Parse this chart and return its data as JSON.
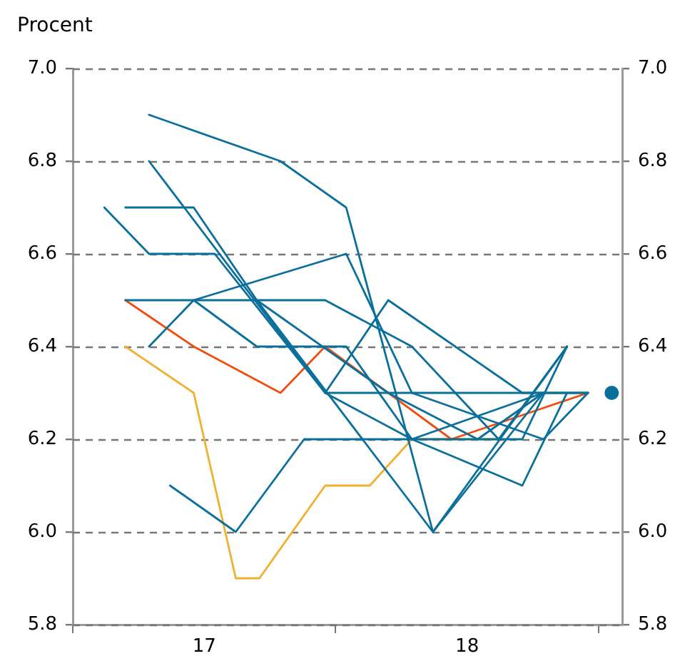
{
  "chart_data": {
    "type": "line",
    "ylabel": "Procent",
    "xlim": [
      16.5,
      18.59
    ],
    "xticks": [
      {
        "value": 16.5,
        "label": null
      },
      17,
      {
        "value": 17.5,
        "label": null
      },
      18,
      {
        "value": 18.5,
        "label": null
      }
    ],
    "ylim": [
      5.8,
      7.0
    ],
    "yticks": [
      {
        "value": 5.8,
        "label": "5.8"
      },
      {
        "value": 6.0,
        "label": "6.0"
      },
      {
        "value": 6.2,
        "label": "6.2"
      },
      {
        "value": 6.4,
        "label": "6.4"
      },
      {
        "value": 6.6,
        "label": "6.6"
      },
      {
        "value": 6.8,
        "label": "6.8"
      },
      {
        "value": 7.0,
        "label": "7.0"
      }
    ],
    "y2lim": [
      5.8,
      7.0
    ],
    "y2ticks": [
      {
        "value": 5.8,
        "label": "5.8"
      },
      {
        "value": 6.0,
        "label": "6.0"
      },
      {
        "value": 6.2,
        "label": "6.2"
      },
      {
        "value": 6.4,
        "label": "6.4"
      },
      {
        "value": 6.6,
        "label": "6.6"
      },
      {
        "value": 6.8,
        "label": "6.8"
      },
      {
        "value": 7.0,
        "label": "7.0"
      }
    ],
    "grid": "y",
    "legend": false,
    "marker": "none",
    "line_style": "solid",
    "series": [
      {
        "color": "#0a6f9a",
        "x": [
          16.79,
          17.29,
          17.54,
          17.87,
          18.38
        ],
        "values": [
          6.9,
          6.8,
          6.7,
          6.0,
          6.4
        ]
      },
      {
        "color": "#0a6f9a",
        "x": [
          16.79,
          17.46,
          17.79,
          18.29
        ],
        "values": [
          6.8,
          6.3,
          6.2,
          6.3
        ]
      },
      {
        "color": "#0a6f9a",
        "x": [
          16.62,
          16.79,
          17.04,
          17.46,
          18.46
        ],
        "values": [
          6.7,
          6.6,
          6.6,
          6.3,
          6.3
        ]
      },
      {
        "color": "#0a6f9a",
        "x": [
          16.7,
          16.96,
          17.2,
          17.7,
          18.04,
          18.29
        ],
        "values": [
          6.7,
          6.7,
          6.5,
          6.3,
          6.2,
          6.3
        ]
      },
      {
        "color": "#0a6f9a",
        "x": [
          16.7,
          17.46,
          17.79,
          18.12,
          18.38
        ],
        "values": [
          6.5,
          6.5,
          6.4,
          6.2,
          6.4
        ]
      },
      {
        "color": "#0a6f9a",
        "x": [
          16.79,
          16.96,
          17.2,
          17.54,
          17.79,
          18.21,
          18.38
        ],
        "values": [
          6.4,
          6.5,
          6.4,
          6.4,
          6.2,
          6.1,
          6.3
        ]
      },
      {
        "color": "#0a6f9a",
        "x": [
          16.96,
          17.54,
          17.79,
          18.29,
          18.46
        ],
        "values": [
          6.5,
          6.6,
          6.3,
          6.2,
          6.3
        ]
      },
      {
        "color": "#0a6f9a",
        "x": [
          17.46,
          17.7,
          18.21,
          18.46
        ],
        "values": [
          6.3,
          6.5,
          6.3,
          6.3
        ]
      },
      {
        "color": "#0a6f9a",
        "x": [
          16.87,
          17.12,
          17.38,
          18.21,
          18.38
        ],
        "values": [
          6.1,
          6.0,
          6.2,
          6.2,
          6.4
        ]
      },
      {
        "color": "#0a6f9a",
        "x": [
          17.2,
          17.87,
          18.29
        ],
        "values": [
          6.5,
          6.0,
          6.3
        ]
      },
      {
        "color": "#f04e0f",
        "x": [
          16.7,
          16.96,
          17.29,
          17.46,
          17.94,
          18.46
        ],
        "values": [
          6.5,
          6.4,
          6.3,
          6.4,
          6.2,
          6.3
        ]
      },
      {
        "color": "#f0b030",
        "x": [
          16.7,
          16.96,
          17.12,
          17.21,
          17.46,
          17.63,
          17.79,
          18.12,
          18.38
        ],
        "values": [
          6.4,
          6.3,
          5.9,
          5.9,
          6.1,
          6.1,
          6.2,
          6.2,
          6.4
        ]
      },
      {
        "type": "scatter",
        "marker": "circle",
        "color": "#0a6f9a",
        "x": [
          18.55
        ],
        "values": [
          6.3
        ]
      }
    ]
  }
}
